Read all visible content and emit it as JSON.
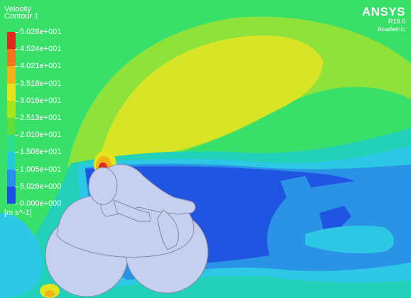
{
  "legend": {
    "quantity": "Velocity",
    "contour": "Contour 1",
    "unit": "[m s^-1]",
    "labels": [
      "5.026e+001",
      "4.524e+001",
      "4.021e+001",
      "3.518e+001",
      "3.016e+001",
      "2.513e+001",
      "2.010e+001",
      "1.508e+001",
      "1.005e+001",
      "5.026e+000",
      "0.000e+000"
    ],
    "colors": [
      "#e0281c",
      "#f2761c",
      "#f2b21a",
      "#e3e51c",
      "#a8e41c",
      "#5fdf3c",
      "#2ee089",
      "#22cbd6",
      "#2c8fe6",
      "#1f4fe0"
    ]
  },
  "brand": {
    "name": "ANSYS",
    "version": "R18.0",
    "edition": "Academic"
  },
  "scene": {
    "background_color": "#38e06a",
    "body_color": "#c7cfee"
  }
}
